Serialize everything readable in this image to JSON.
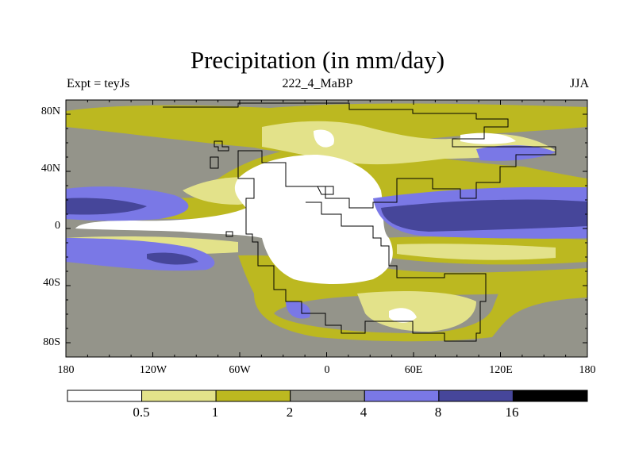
{
  "title": "Precipitation (in mm/day)",
  "subtitle_left": "Expt = teyJs",
  "subtitle_center": "222_4_MaBP",
  "subtitle_right": "JJA",
  "map": {
    "lon_range": [
      -180,
      180
    ],
    "lat_range": [
      -90,
      90
    ],
    "x_tick_labels": [
      "180",
      "120W",
      "60W",
      "0",
      "60E",
      "120E",
      "180"
    ],
    "y_tick_labels": [
      "80N",
      "40N",
      "0",
      "40S",
      "80S"
    ]
  },
  "colorbar": {
    "levels": [
      "0.5",
      "1",
      "2",
      "4",
      "8",
      "16"
    ],
    "colors": [
      "#ffffff",
      "#e3e28a",
      "#bcb820",
      "#94948a",
      "#7a78e6",
      "#46469a",
      "#000000"
    ]
  },
  "colors": {
    "land_outline": "#000000"
  }
}
